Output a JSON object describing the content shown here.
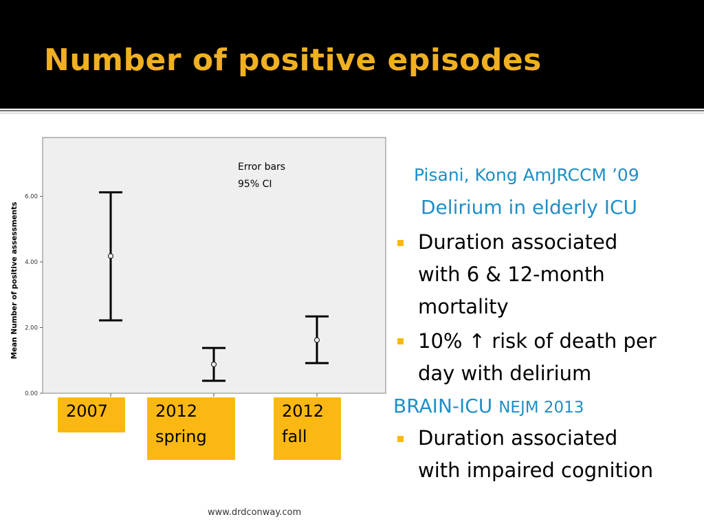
{
  "slide": {
    "title": "Number of positive episodes",
    "footer": "www.drdconway.com"
  },
  "chart_data": {
    "type": "errorbar",
    "categories": [
      "2007",
      "2012\nspring",
      "2012\nfall"
    ],
    "means": [
      4.18,
      0.88,
      1.62
    ],
    "ci_low": [
      2.22,
      0.38,
      0.92
    ],
    "ci_high": [
      6.12,
      1.38,
      2.34
    ],
    "ylabel": "Mean Number of positive assessments",
    "ylim": [
      0,
      7.5
    ],
    "yticks": [
      "0.00",
      "2.00",
      "4.00",
      "6.00"
    ],
    "ytick_values": [
      0,
      2,
      4,
      6
    ],
    "annotation_line1": "Error bars",
    "annotation_line2": "95% CI",
    "grid": false,
    "background_color": "#efefef"
  },
  "categories_labels": {
    "c0": "2007",
    "c1_line1": "2012",
    "c1_line2": "spring",
    "c2_line1": "2012",
    "c2_line2": "fall"
  },
  "right_panel": {
    "citation1": "Pisani, Kong AmJRCCM ’09",
    "subtitle1": "Delirium in elderly ICU",
    "bullet1_line1": "Duration associated",
    "bullet1_line2": "with 6 & 12-month",
    "bullet1_line3": "mortality",
    "bullet2_line1": "10% ↑ risk of death per",
    "bullet2_line2": "day with delirium",
    "heading2": "BRAIN-ICU",
    "heading2_suffix": "NEJM 2013",
    "bullet3_line1": "Duration associated",
    "bullet3_line2": "with impaired cognition"
  },
  "colors": {
    "accent": "#fbb812",
    "title": "#f0b020",
    "link_blue": "#1e8fc6"
  }
}
